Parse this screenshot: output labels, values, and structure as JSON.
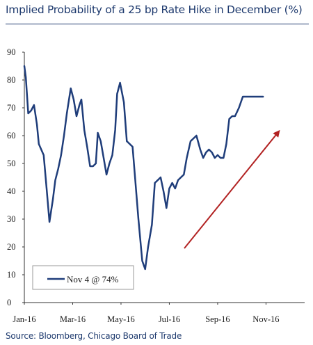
{
  "title": "Implied Probability of a 25 bp Rate Hike in December (%)",
  "source": "Source: Bloomberg, Chicago Board of Trade",
  "chart_data": {
    "type": "line",
    "title": "Implied Probability of a 25 bp Rate Hike in December (%)",
    "xlabel": "",
    "ylabel": "",
    "ylim": [
      0,
      90
    ],
    "yticks": [
      0,
      10,
      20,
      30,
      40,
      50,
      60,
      70,
      80,
      90
    ],
    "xticks": [
      "Jan-16",
      "Mar-16",
      "May-16",
      "Jul-16",
      "Sep-16",
      "Nov-16"
    ],
    "grid": false,
    "legend_position": "bottom-left",
    "series": [
      {
        "name": "Nov 4 @ 74%",
        "color": "#1f3d7a",
        "x": [
          0.0,
          0.15,
          0.4,
          0.7,
          1.0,
          1.3,
          1.5,
          1.75,
          2.0,
          2.3,
          2.6,
          2.95,
          3.2,
          3.5,
          3.8,
          4.1,
          4.4,
          4.8,
          5.1,
          5.4,
          5.7,
          5.9,
          6.2,
          6.5,
          6.8,
          7.1,
          7.4,
          7.6,
          7.9,
          8.2,
          8.5,
          8.8,
          9.1,
          9.4,
          9.6,
          9.9,
          10.3,
          10.6,
          10.9,
          11.2,
          11.5,
          11.8,
          12.2,
          12.5,
          12.8,
          13.2,
          13.5,
          13.8,
          14.1,
          14.4,
          14.7,
          15.0,
          15.3,
          15.6,
          15.9,
          16.2,
          16.5,
          16.8,
          17.2,
          17.5,
          17.8,
          18.2,
          18.5,
          18.8,
          19.1,
          19.4,
          19.7,
          20.0,
          20.3,
          20.6,
          20.9,
          21.2,
          21.5,
          21.8,
          22.2,
          22.6,
          22.9,
          23.2,
          23.5,
          23.8,
          24.1,
          24.4,
          24.7
        ],
        "values": [
          85,
          81,
          68,
          69,
          71,
          64,
          57,
          55,
          53,
          41,
          29,
          37,
          44,
          48,
          53,
          60,
          68,
          77,
          73,
          67,
          71,
          73,
          62,
          56,
          49,
          49,
          50,
          61,
          58,
          52,
          46,
          50,
          53,
          62,
          75,
          79,
          72,
          58,
          57,
          56,
          43,
          30,
          15,
          12,
          20,
          28,
          43,
          44,
          45,
          40,
          34,
          41,
          43,
          41,
          44,
          45,
          46,
          52,
          58,
          59,
          60,
          55,
          52,
          54,
          55,
          54,
          52,
          53,
          52,
          52,
          57,
          66,
          67,
          67,
          70,
          74,
          74,
          74,
          74,
          74,
          74,
          74,
          74
        ]
      }
    ]
  },
  "trend_arrow": {
    "color": "#b22222",
    "direction": "upward"
  }
}
